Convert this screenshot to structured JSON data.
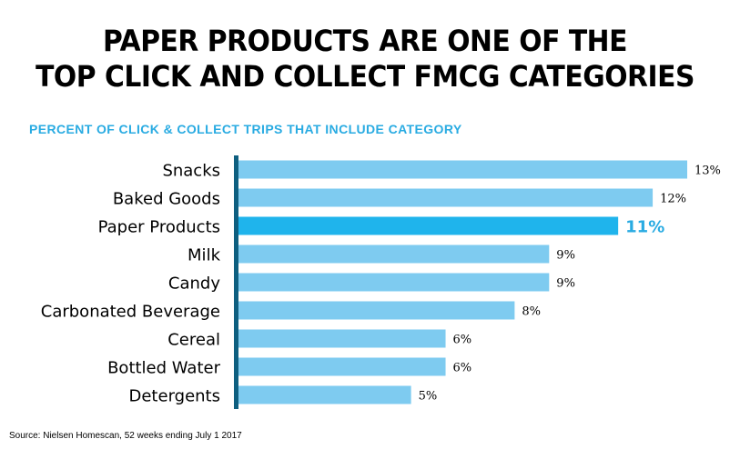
{
  "title_line1": "PAPER PRODUCTS ARE ONE OF THE",
  "title_line2": "TOP CLICK AND COLLECT FMCG CATEGORIES",
  "source": "Source:  Nielsen Homescan, 52 weeks ending July 1 2017",
  "colors": {
    "bar": "#7ecbf0",
    "highlight": "#1fb4ec",
    "axis": "#0e5f80",
    "highlight_label": "#29abe2"
  },
  "chart_data": {
    "type": "bar",
    "orientation": "horizontal",
    "title": "PERCENT OF CLICK & COLLECT TRIPS THAT INCLUDE CATEGORY",
    "categories": [
      "Snacks",
      "Baked Goods",
      "Paper Products",
      "Milk",
      "Candy",
      "Carbonated Beverage",
      "Cereal",
      "Bottled Water",
      "Detergents"
    ],
    "values": [
      13,
      12,
      11,
      9,
      9,
      8,
      6,
      6,
      5
    ],
    "value_labels": [
      "13%",
      "12%",
      "11%",
      "9%",
      "9%",
      "8%",
      "6%",
      "6%",
      "5%"
    ],
    "highlight": "Paper Products",
    "xlim": [
      0,
      13
    ],
    "grid": false,
    "legend": "none"
  }
}
